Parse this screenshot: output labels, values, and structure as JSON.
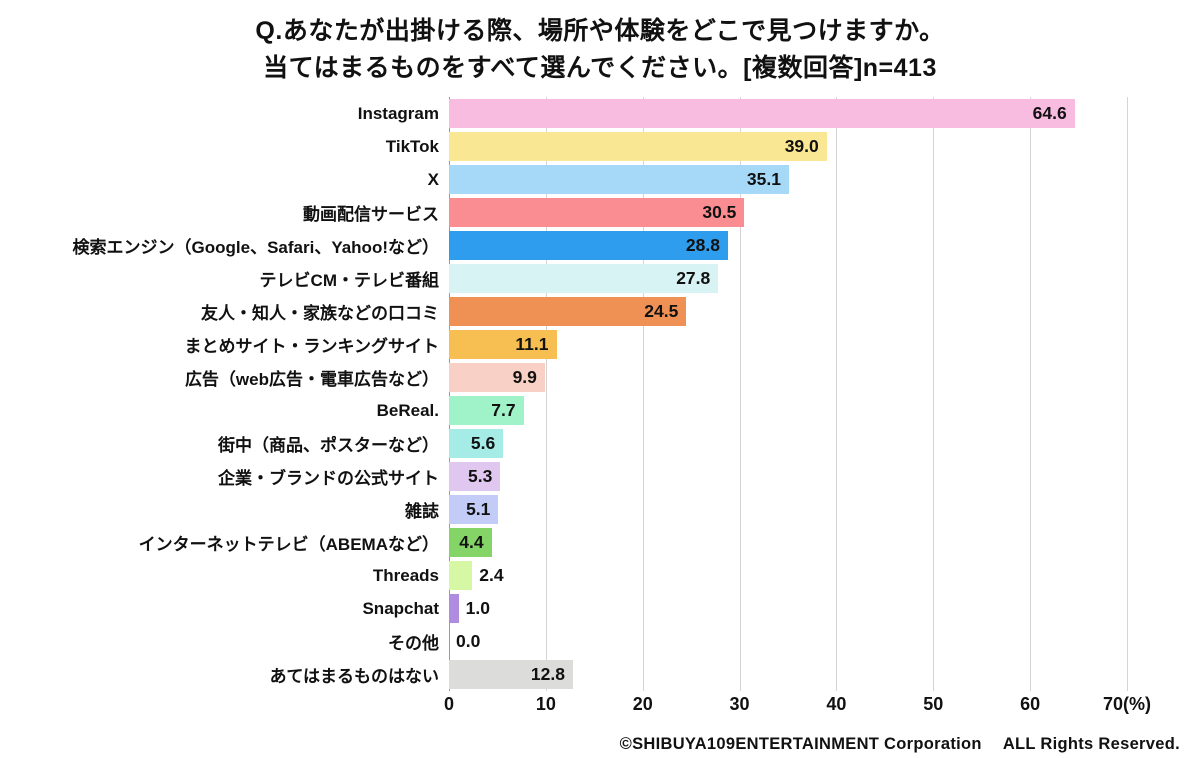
{
  "title": {
    "line1": "Q.あなたが出掛ける際、場所や体験をどこで見つけますか。",
    "line2": "当てはまるものをすべて選んでください。[複数回答]n=413"
  },
  "footer": "©SHIBUYA109ENTERTAINMENT Corporation　 ALL Rights Reserved.",
  "chart_data": {
    "type": "bar",
    "orientation": "horizontal",
    "title": "Q.あなたが出掛ける際、場所や体験をどこで見つけますか。当てはまるものをすべて選んでください。[複数回答]n=413",
    "xlim": [
      0,
      70
    ],
    "xticks": [
      0,
      10,
      20,
      30,
      40,
      50,
      60,
      70
    ],
    "xlabel_unit": "(%)",
    "grid": true,
    "legend": "none",
    "value_label_decimals": 1,
    "inside_label_min_value": 4.0,
    "categories": [
      "Instagram",
      "TikTok",
      "X",
      "動画配信サービス",
      "検索エンジン（Google、Safari、Yahoo!など）",
      "テレビCM・テレビ番組",
      "友人・知人・家族などの口コミ",
      "まとめサイト・ランキングサイト",
      "広告（web広告・電車広告など）",
      "BeReal.",
      "街中（商品、ポスターなど）",
      "企業・ブランドの公式サイト",
      "雑誌",
      "インターネットテレビ（ABEMAなど）",
      "Threads",
      "Snapchat",
      "その他",
      "あてはまるものはない"
    ],
    "values": [
      64.6,
      39.0,
      35.1,
      30.5,
      28.8,
      27.8,
      24.5,
      11.1,
      9.9,
      7.7,
      5.6,
      5.3,
      5.1,
      4.4,
      2.4,
      1.0,
      0.0,
      12.8
    ],
    "colors": [
      "#F9BCE1",
      "#FAE793",
      "#A6D9F8",
      "#F98D92",
      "#2E9DEE",
      "#D7F3F3",
      "#EF9155",
      "#F7BE51",
      "#F9D0C5",
      "#A0F2C9",
      "#A5EBE6",
      "#DFC7F0",
      "#C2CCF6",
      "#85D468",
      "#D6F8A4",
      "#B08CE0",
      "#FFFFFF",
      "#DCDCDA"
    ],
    "grid_color": "#d4d4d4",
    "axis_line_color": "#9a9a9a",
    "text_color": "#111111"
  }
}
